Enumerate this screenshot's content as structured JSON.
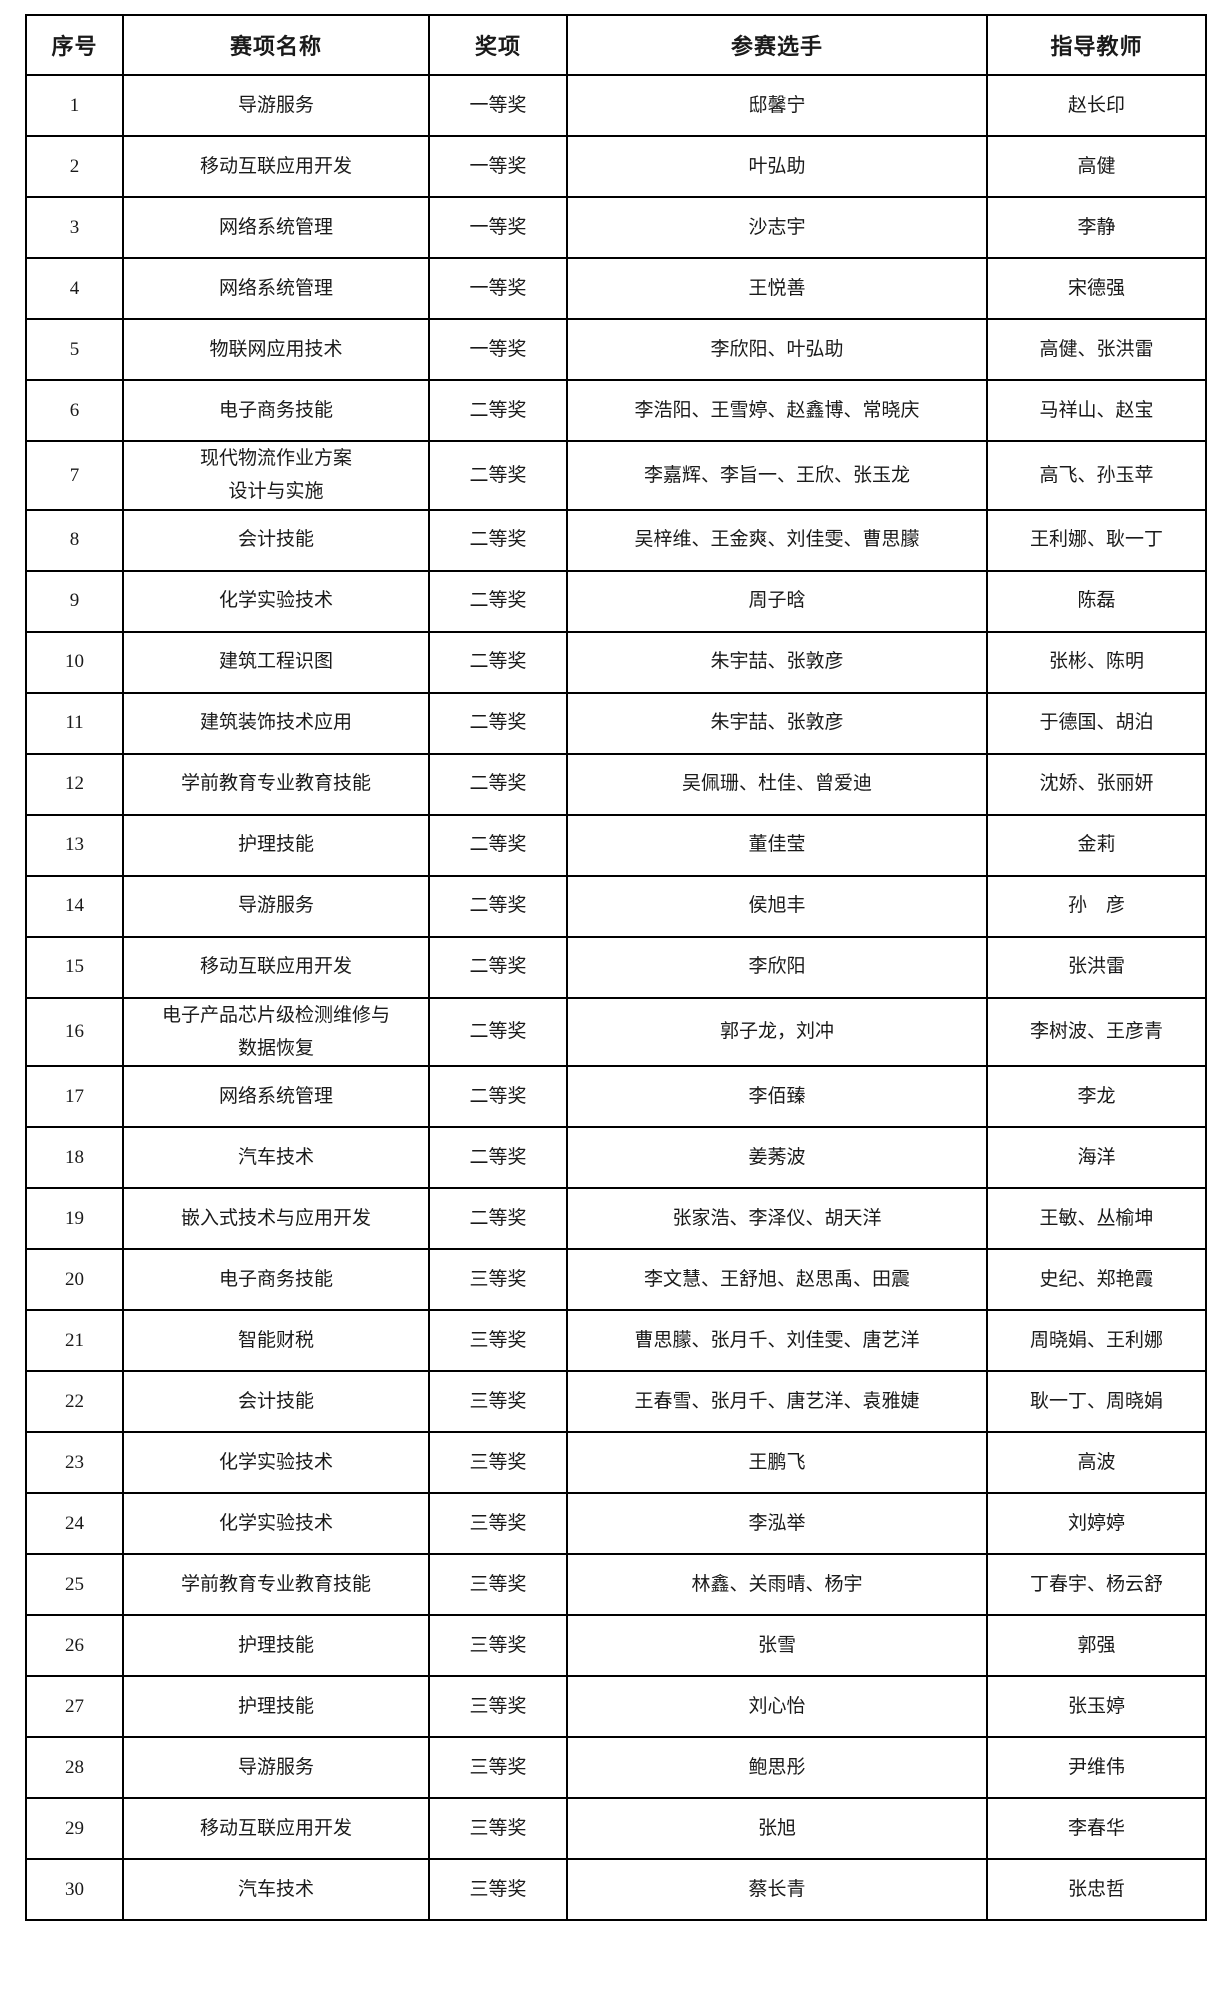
{
  "colors": {
    "background": "#ffffff",
    "border": "#000000",
    "text": "#1a1a1a"
  },
  "table": {
    "columns": [
      {
        "key": "index",
        "label": "序号"
      },
      {
        "key": "event",
        "label": "赛项名称"
      },
      {
        "key": "award",
        "label": "奖项"
      },
      {
        "key": "participants",
        "label": "参赛选手"
      },
      {
        "key": "teachers",
        "label": "指导教师"
      }
    ],
    "rows": [
      {
        "index": "1",
        "event": "导游服务",
        "award": "一等奖",
        "participants": "邸馨宁",
        "teachers": "赵长印"
      },
      {
        "index": "2",
        "event": "移动互联应用开发",
        "award": "一等奖",
        "participants": "叶弘助",
        "teachers": "高健"
      },
      {
        "index": "3",
        "event": "网络系统管理",
        "award": "一等奖",
        "participants": "沙志宇",
        "teachers": "李静"
      },
      {
        "index": "4",
        "event": "网络系统管理",
        "award": "一等奖",
        "participants": "王悦善",
        "teachers": "宋德强"
      },
      {
        "index": "5",
        "event": "物联网应用技术",
        "award": "一等奖",
        "participants": "李欣阳、叶弘助",
        "teachers": "高健、张洪雷"
      },
      {
        "index": "6",
        "event": "电子商务技能",
        "award": "二等奖",
        "participants": "李浩阳、王雪婷、赵鑫博、常晓庆",
        "teachers": "马祥山、赵宝"
      },
      {
        "index": "7",
        "event": "现代物流作业方案\n设计与实施",
        "award": "二等奖",
        "participants": "李嘉辉、李旨一、王欣、张玉龙",
        "teachers": "高飞、孙玉苹"
      },
      {
        "index": "8",
        "event": "会计技能",
        "award": "二等奖",
        "participants": "吴梓维、王金爽、刘佳雯、曹思朦",
        "teachers": "王利娜、耿一丁"
      },
      {
        "index": "9",
        "event": "化学实验技术",
        "award": "二等奖",
        "participants": "周子晗",
        "teachers": "陈磊"
      },
      {
        "index": "10",
        "event": "建筑工程识图",
        "award": "二等奖",
        "participants": "朱宇喆、张敦彦",
        "teachers": "张彬、陈明"
      },
      {
        "index": "11",
        "event": "建筑装饰技术应用",
        "award": "二等奖",
        "participants": "朱宇喆、张敦彦",
        "teachers": "于德国、胡泊"
      },
      {
        "index": "12",
        "event": "学前教育专业教育技能",
        "award": "二等奖",
        "participants": "吴佩珊、杜佳、曾爱迪",
        "teachers": "沈娇、张丽妍"
      },
      {
        "index": "13",
        "event": "护理技能",
        "award": "二等奖",
        "participants": "董佳莹",
        "teachers": "金莉"
      },
      {
        "index": "14",
        "event": "导游服务",
        "award": "二等奖",
        "participants": "侯旭丰",
        "teachers": "孙　彦"
      },
      {
        "index": "15",
        "event": "移动互联应用开发",
        "award": "二等奖",
        "participants": "李欣阳",
        "teachers": "张洪雷"
      },
      {
        "index": "16",
        "event": "电子产品芯片级检测维修与\n数据恢复",
        "award": "二等奖",
        "participants": "郭子龙，刘冲",
        "teachers": "李树波、王彦青"
      },
      {
        "index": "17",
        "event": "网络系统管理",
        "award": "二等奖",
        "participants": "李佰臻",
        "teachers": "李龙"
      },
      {
        "index": "18",
        "event": "汽车技术",
        "award": "二等奖",
        "participants": "姜莠波",
        "teachers": "海洋"
      },
      {
        "index": "19",
        "event": "嵌入式技术与应用开发",
        "award": "二等奖",
        "participants": "张家浩、李泽仪、胡天洋",
        "teachers": "王敏、丛榆坤"
      },
      {
        "index": "20",
        "event": "电子商务技能",
        "award": "三等奖",
        "participants": "李文慧、王舒旭、赵思禹、田震",
        "teachers": "史纪、郑艳霞"
      },
      {
        "index": "21",
        "event": "智能财税",
        "award": "三等奖",
        "participants": "曹思朦、张月千、刘佳雯、唐艺洋",
        "teachers": "周晓娟、王利娜"
      },
      {
        "index": "22",
        "event": "会计技能",
        "award": "三等奖",
        "participants": "王春雪、张月千、唐艺洋、袁雅婕",
        "teachers": "耿一丁、周晓娟"
      },
      {
        "index": "23",
        "event": "化学实验技术",
        "award": "三等奖",
        "participants": "王鹏飞",
        "teachers": "高波"
      },
      {
        "index": "24",
        "event": "化学实验技术",
        "award": "三等奖",
        "participants": "李泓举",
        "teachers": "刘婷婷"
      },
      {
        "index": "25",
        "event": "学前教育专业教育技能",
        "award": "三等奖",
        "participants": "林鑫、关雨晴、杨宇",
        "teachers": "丁春宇、杨云舒"
      },
      {
        "index": "26",
        "event": "护理技能",
        "award": "三等奖",
        "participants": "张雪",
        "teachers": "郭强"
      },
      {
        "index": "27",
        "event": "护理技能",
        "award": "三等奖",
        "participants": "刘心怡",
        "teachers": "张玉婷"
      },
      {
        "index": "28",
        "event": "导游服务",
        "award": "三等奖",
        "participants": "鲍思彤",
        "teachers": "尹维伟"
      },
      {
        "index": "29",
        "event": "移动互联应用开发",
        "award": "三等奖",
        "participants": "张旭",
        "teachers": "李春华"
      },
      {
        "index": "30",
        "event": "汽车技术",
        "award": "三等奖",
        "participants": "蔡长青",
        "teachers": "张忠哲"
      }
    ]
  }
}
